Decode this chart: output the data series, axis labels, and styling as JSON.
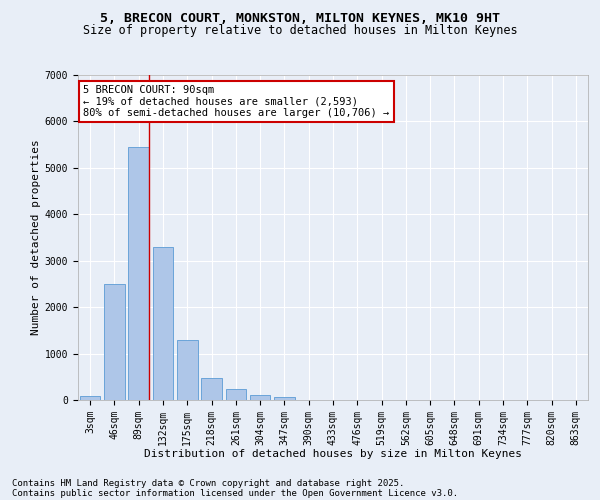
{
  "title_line1": "5, BRECON COURT, MONKSTON, MILTON KEYNES, MK10 9HT",
  "title_line2": "Size of property relative to detached houses in Milton Keynes",
  "xlabel": "Distribution of detached houses by size in Milton Keynes",
  "ylabel": "Number of detached properties",
  "categories": [
    "3sqm",
    "46sqm",
    "89sqm",
    "132sqm",
    "175sqm",
    "218sqm",
    "261sqm",
    "304sqm",
    "347sqm",
    "390sqm",
    "433sqm",
    "476sqm",
    "519sqm",
    "562sqm",
    "605sqm",
    "648sqm",
    "691sqm",
    "734sqm",
    "777sqm",
    "820sqm",
    "863sqm"
  ],
  "values": [
    80,
    2500,
    5450,
    3300,
    1300,
    480,
    230,
    100,
    60,
    0,
    0,
    0,
    0,
    0,
    0,
    0,
    0,
    0,
    0,
    0,
    0
  ],
  "bar_color": "#aec6e8",
  "bar_edge_color": "#5b9bd5",
  "vline_x_index": 2,
  "annotation_text": "5 BRECON COURT: 90sqm\n← 19% of detached houses are smaller (2,593)\n80% of semi-detached houses are larger (10,706) →",
  "annotation_box_color": "#ffffff",
  "annotation_box_edge_color": "#cc0000",
  "ylim": [
    0,
    7000
  ],
  "yticks": [
    0,
    1000,
    2000,
    3000,
    4000,
    5000,
    6000,
    7000
  ],
  "background_color": "#e8eef7",
  "plot_background": "#e8eef7",
  "grid_color": "#ffffff",
  "footer_line1": "Contains HM Land Registry data © Crown copyright and database right 2025.",
  "footer_line2": "Contains public sector information licensed under the Open Government Licence v3.0.",
  "title_fontsize": 9.5,
  "subtitle_fontsize": 8.5,
  "axis_label_fontsize": 8,
  "tick_fontsize": 7,
  "annotation_fontsize": 7.5,
  "footer_fontsize": 6.5
}
